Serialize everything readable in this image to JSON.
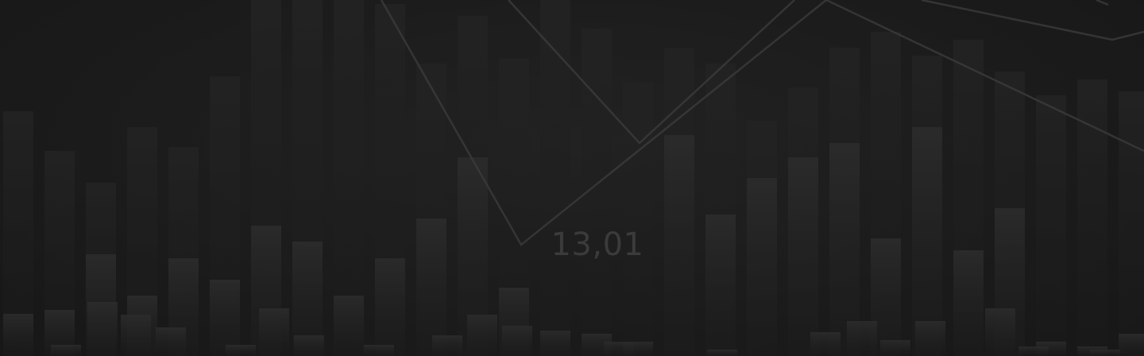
{
  "background": {
    "base_color": "#1b1b1b",
    "bar_color": "#2a2a2a",
    "line_color": "#3a3a3a"
  },
  "center_value": "13,01"
}
